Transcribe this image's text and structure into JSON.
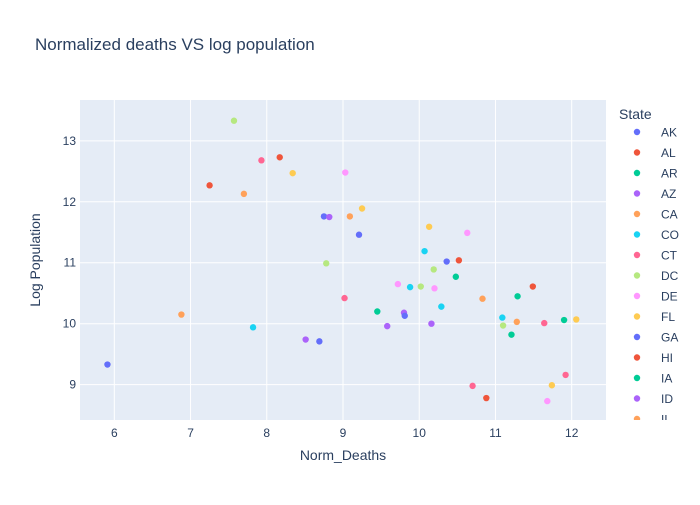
{
  "chart_data": {
    "type": "scatter",
    "title": "Normalized deaths VS log population",
    "xlabel": "Norm_Deaths",
    "ylabel": "Log Population",
    "xlim": [
      5.55,
      12.45
    ],
    "ylim": [
      8.42,
      13.67
    ],
    "xticks": [
      6,
      7,
      8,
      9,
      10,
      11,
      12
    ],
    "yticks": [
      9,
      10,
      11,
      12,
      13
    ],
    "grid": true,
    "plot_background": "#e5ecf6",
    "legend": {
      "title": "State",
      "placement": "right",
      "entries_visible": [
        "AK",
        "AL",
        "AR",
        "AZ",
        "CA",
        "CO",
        "CT",
        "DC",
        "DE",
        "FL",
        "GA",
        "HI",
        "IA",
        "ID",
        "IL",
        "IN"
      ]
    },
    "points": [
      {
        "x": 5.91,
        "y": 9.33,
        "color": "#636efa"
      },
      {
        "x": 6.88,
        "y": 10.15,
        "color": "#ffa15a"
      },
      {
        "x": 7.25,
        "y": 12.27,
        "color": "#ef553b"
      },
      {
        "x": 7.57,
        "y": 13.33,
        "color": "#b6e880"
      },
      {
        "x": 7.7,
        "y": 12.13,
        "color": "#ffa15a"
      },
      {
        "x": 7.82,
        "y": 9.94,
        "color": "#19d3f3"
      },
      {
        "x": 7.93,
        "y": 12.68,
        "color": "#ff6692"
      },
      {
        "x": 8.17,
        "y": 12.73,
        "color": "#ef553b"
      },
      {
        "x": 8.34,
        "y": 12.47,
        "color": "#fecb52"
      },
      {
        "x": 8.51,
        "y": 9.74,
        "color": "#ab63fa"
      },
      {
        "x": 8.69,
        "y": 9.71,
        "color": "#636efa"
      },
      {
        "x": 8.75,
        "y": 11.76,
        "color": "#636efa"
      },
      {
        "x": 8.78,
        "y": 10.99,
        "color": "#b6e880"
      },
      {
        "x": 8.82,
        "y": 11.75,
        "color": "#ab63fa"
      },
      {
        "x": 9.02,
        "y": 10.42,
        "color": "#ff6692"
      },
      {
        "x": 9.03,
        "y": 12.48,
        "color": "#ff97ff"
      },
      {
        "x": 9.09,
        "y": 11.76,
        "color": "#ffa15a"
      },
      {
        "x": 9.21,
        "y": 11.46,
        "color": "#636efa"
      },
      {
        "x": 9.25,
        "y": 11.89,
        "color": "#fecb52"
      },
      {
        "x": 9.45,
        "y": 10.2,
        "color": "#00cc96"
      },
      {
        "x": 9.58,
        "y": 9.96,
        "color": "#ab63fa"
      },
      {
        "x": 9.72,
        "y": 10.65,
        "color": "#ff97ff"
      },
      {
        "x": 9.8,
        "y": 10.18,
        "color": "#ab63fa"
      },
      {
        "x": 9.81,
        "y": 10.13,
        "color": "#636efa"
      },
      {
        "x": 9.88,
        "y": 10.6,
        "color": "#19d3f3"
      },
      {
        "x": 10.02,
        "y": 10.61,
        "color": "#b6e880"
      },
      {
        "x": 10.07,
        "y": 11.19,
        "color": "#19d3f3"
      },
      {
        "x": 10.13,
        "y": 11.59,
        "color": "#fecb52"
      },
      {
        "x": 10.16,
        "y": 10.0,
        "color": "#ab63fa"
      },
      {
        "x": 10.19,
        "y": 10.89,
        "color": "#b6e880"
      },
      {
        "x": 10.2,
        "y": 10.58,
        "color": "#ff97ff"
      },
      {
        "x": 10.29,
        "y": 10.28,
        "color": "#19d3f3"
      },
      {
        "x": 10.36,
        "y": 11.02,
        "color": "#636efa"
      },
      {
        "x": 10.48,
        "y": 10.77,
        "color": "#00cc96"
      },
      {
        "x": 10.52,
        "y": 11.04,
        "color": "#ef553b"
      },
      {
        "x": 10.63,
        "y": 11.49,
        "color": "#ff97ff"
      },
      {
        "x": 10.7,
        "y": 8.98,
        "color": "#ff6692"
      },
      {
        "x": 10.83,
        "y": 10.41,
        "color": "#ffa15a"
      },
      {
        "x": 10.88,
        "y": 8.78,
        "color": "#ef553b"
      },
      {
        "x": 11.09,
        "y": 10.1,
        "color": "#19d3f3"
      },
      {
        "x": 11.1,
        "y": 9.97,
        "color": "#b6e880"
      },
      {
        "x": 11.21,
        "y": 9.82,
        "color": "#00cc96"
      },
      {
        "x": 11.28,
        "y": 10.03,
        "color": "#ffa15a"
      },
      {
        "x": 11.29,
        "y": 10.45,
        "color": "#00cc96"
      },
      {
        "x": 11.49,
        "y": 10.61,
        "color": "#ef553b"
      },
      {
        "x": 11.64,
        "y": 10.01,
        "color": "#ff6692"
      },
      {
        "x": 11.68,
        "y": 8.73,
        "color": "#ff97ff"
      },
      {
        "x": 11.74,
        "y": 8.99,
        "color": "#fecb52"
      },
      {
        "x": 11.9,
        "y": 10.06,
        "color": "#00cc96"
      },
      {
        "x": 11.92,
        "y": 9.16,
        "color": "#ff6692"
      },
      {
        "x": 12.06,
        "y": 10.07,
        "color": "#fecb52"
      }
    ],
    "legend_colors": [
      "#636efa",
      "#ef553b",
      "#00cc96",
      "#ab63fa",
      "#ffa15a",
      "#19d3f3",
      "#ff6692",
      "#b6e880",
      "#ff97ff",
      "#fecb52",
      "#636efa",
      "#ef553b",
      "#00cc96",
      "#ab63fa",
      "#ffa15a",
      "#19d3f3"
    ]
  }
}
